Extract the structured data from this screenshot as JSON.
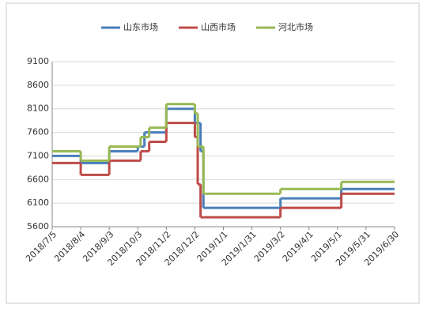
{
  "chart_data": {
    "type": "line",
    "step": true,
    "x": [
      "2018/7/5",
      "2018/8/4",
      "2018/9/3",
      "2018/10/3",
      "2018/10/6",
      "2018/10/10",
      "2018/10/15",
      "2018/11/2",
      "2018/12/2",
      "2018/12/5",
      "2018/12/8",
      "2018/12/11",
      "2019/3/2",
      "2019/5/5",
      "2019/6/30"
    ],
    "series": [
      {
        "name": "山东市场",
        "color": "#4a7ebb",
        "values": [
          7100,
          6950,
          7200,
          7300,
          7300,
          7600,
          7600,
          8100,
          7800,
          7800,
          7200,
          6000,
          6200,
          6400,
          6400
        ]
      },
      {
        "name": "山西市场",
        "color": "#be4b48",
        "values": [
          6950,
          6700,
          7000,
          7000,
          7200,
          7200,
          7400,
          7800,
          7500,
          6500,
          5800,
          5800,
          6000,
          6300,
          6300
        ]
      },
      {
        "name": "河北市场",
        "color": "#98b954",
        "values": [
          7200,
          7000,
          7300,
          7300,
          7500,
          7500,
          7700,
          8200,
          8000,
          7300,
          7300,
          6300,
          6400,
          6550,
          6550
        ]
      }
    ],
    "ylim": [
      5600,
      9100
    ],
    "yticks": [
      5600,
      6100,
      6600,
      7100,
      7600,
      8100,
      8600,
      9100
    ],
    "xlim": [
      "2018/7/5",
      "2019/6/30"
    ],
    "xticks": [
      "2018/7/5",
      "2018/8/4",
      "2018/9/3",
      "2018/10/3",
      "2018/11/2",
      "2018/12/2",
      "2019/1/1",
      "2019/1/31",
      "2019/3/2",
      "2019/4/1",
      "2019/5/1",
      "2019/5/31",
      "2019/6/30"
    ],
    "grid": true,
    "legend": "top"
  }
}
